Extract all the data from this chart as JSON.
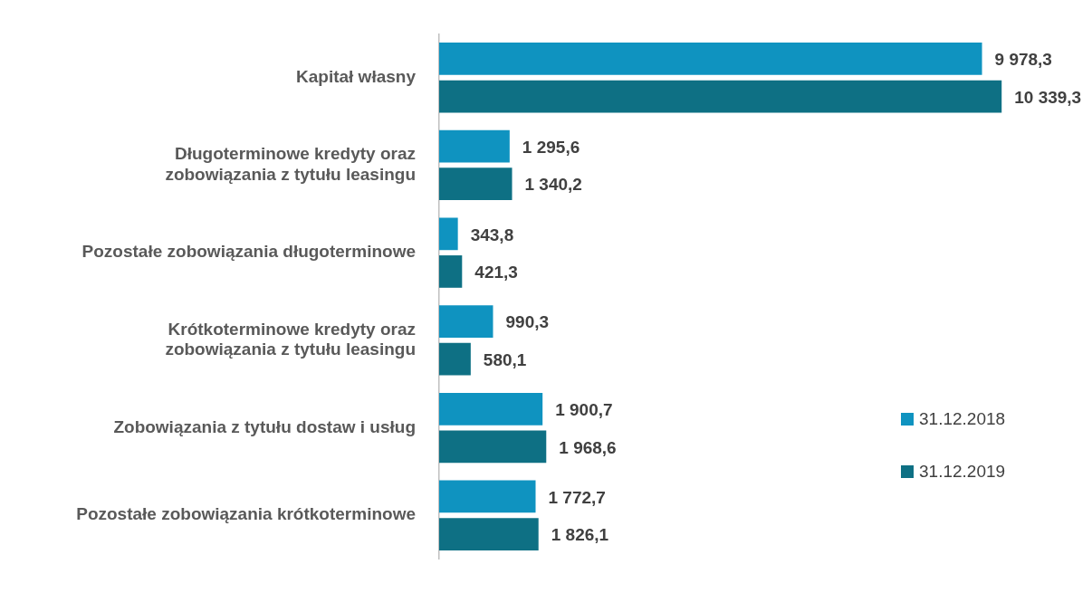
{
  "chart_data": {
    "type": "bar",
    "orientation": "horizontal",
    "categories": [
      "Kapitał własny",
      "Długoterminowe kredyty oraz zobowiązania z tytułu leasingu",
      "Pozostałe zobowiązania długoterminowe",
      "Krótkoterminowe kredyty oraz zobowiązania z tytułu leasingu",
      "Zobowiązania z tytułu dostaw i usług",
      "Pozostałe zobowiązania krótkoterminowe"
    ],
    "series": [
      {
        "name": "31.12.2018",
        "color": "#0f93c0",
        "values": [
          9978.3,
          1295.6,
          343.8,
          990.3,
          1900.7,
          1772.7
        ],
        "value_labels": [
          "9 978,3",
          "1 295,6",
          "343,8",
          "990,3",
          "1 900,7",
          "1 772,7"
        ]
      },
      {
        "name": "31.12.2019",
        "color": "#0e7084",
        "values": [
          10339.3,
          1340.2,
          421.3,
          580.1,
          1968.6,
          1826.1
        ],
        "value_labels": [
          "10 339,3",
          "1 340,2",
          "421,3",
          "580,1",
          "1 968,6",
          "1 826,1"
        ]
      }
    ],
    "tick_labels": "y",
    "legend": "bottom right"
  }
}
